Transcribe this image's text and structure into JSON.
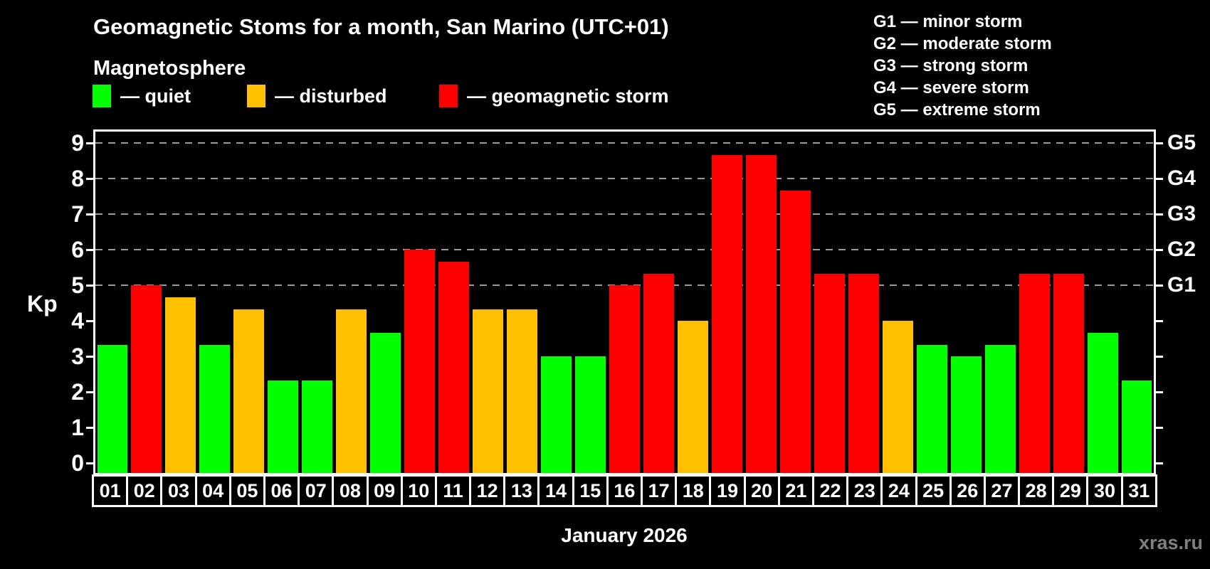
{
  "title": "Geomagnetic Stoms for a month, San Marino (UTC+01)",
  "subtitle": "Magnetosphere",
  "legend": {
    "items": [
      {
        "key": "quiet",
        "label": "— quiet",
        "color": "#00ff00"
      },
      {
        "key": "disturbed",
        "label": "— disturbed",
        "color": "#ffc000"
      },
      {
        "key": "storm",
        "label": "— geomagnetic storm",
        "color": "#ff0000"
      }
    ]
  },
  "storm_scale": [
    {
      "code": "G1",
      "label": "minor storm"
    },
    {
      "code": "G2",
      "label": "moderate storm"
    },
    {
      "code": "G3",
      "label": "strong storm"
    },
    {
      "code": "G4",
      "label": "severe storm"
    },
    {
      "code": "G5",
      "label": "extreme storm"
    }
  ],
  "watermark": "xras.ru",
  "colors": {
    "background": "#000000",
    "text": "#ffffff",
    "grid": "#9a9a9a",
    "watermark": "#808080",
    "quiet": "#00ff00",
    "disturbed": "#ffc000",
    "storm": "#ff0000"
  },
  "chart_data": {
    "type": "bar",
    "title": "Geomagnetic Stoms for a month, San Marino (UTC+01)",
    "xlabel": "January 2026",
    "ylabel": "Kp",
    "ylim": [
      0,
      9.3
    ],
    "yticks": [
      0,
      1,
      2,
      3,
      4,
      5,
      6,
      7,
      8,
      9
    ],
    "gridlines_at": [
      5,
      6,
      7,
      8,
      9
    ],
    "grid": "dashed horizontal lines at Kp 5 through 9",
    "legend_position": "top",
    "right_axis": [
      {
        "kp": 5,
        "label": "G1"
      },
      {
        "kp": 6,
        "label": "G2"
      },
      {
        "kp": 7,
        "label": "G3"
      },
      {
        "kp": 8,
        "label": "G4"
      },
      {
        "kp": 9,
        "label": "G5"
      }
    ],
    "categories": [
      "01",
      "02",
      "03",
      "04",
      "05",
      "06",
      "07",
      "08",
      "09",
      "10",
      "11",
      "12",
      "13",
      "14",
      "15",
      "16",
      "17",
      "18",
      "19",
      "20",
      "21",
      "22",
      "23",
      "24",
      "25",
      "26",
      "27",
      "28",
      "29",
      "30",
      "31"
    ],
    "values": [
      3.33,
      5,
      4.67,
      3.33,
      4.33,
      2.33,
      2.33,
      4.33,
      3.67,
      6,
      5.67,
      4.33,
      4.33,
      3,
      3,
      5,
      5.33,
      4,
      8.67,
      8.67,
      7.67,
      5.33,
      5.33,
      4,
      3.33,
      3,
      3.33,
      5.33,
      5.33,
      3.67,
      2.33
    ],
    "states": [
      "quiet",
      "storm",
      "disturbed",
      "quiet",
      "disturbed",
      "quiet",
      "quiet",
      "disturbed",
      "quiet",
      "storm",
      "storm",
      "disturbed",
      "disturbed",
      "quiet",
      "quiet",
      "storm",
      "storm",
      "disturbed",
      "storm",
      "storm",
      "storm",
      "storm",
      "storm",
      "disturbed",
      "quiet",
      "quiet",
      "quiet",
      "storm",
      "storm",
      "quiet",
      "quiet"
    ]
  }
}
